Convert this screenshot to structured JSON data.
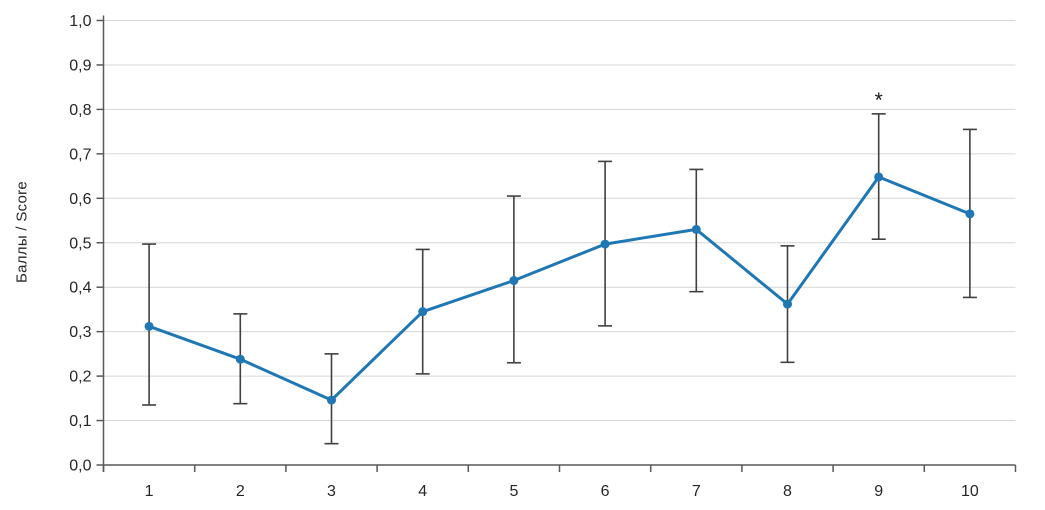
{
  "chart_data": {
    "type": "line",
    "title": "",
    "xlabel": "",
    "ylabel": "Баллы / Score",
    "categories": [
      "1",
      "2",
      "3",
      "4",
      "5",
      "6",
      "7",
      "8",
      "9",
      "10"
    ],
    "series": [
      {
        "name": "Баллы / Score",
        "values": [
          0.312,
          0.238,
          0.146,
          0.345,
          0.415,
          0.497,
          0.53,
          0.362,
          0.648,
          0.565
        ],
        "error_low": [
          0.135,
          0.138,
          0.048,
          0.205,
          0.23,
          0.313,
          0.39,
          0.231,
          0.508,
          0.377
        ],
        "error_high": [
          0.497,
          0.34,
          0.25,
          0.485,
          0.605,
          0.683,
          0.665,
          0.493,
          0.79,
          0.755
        ],
        "color": "#1f77b4"
      }
    ],
    "ylim": [
      0.0,
      1.0
    ],
    "ytick_labels": [
      "0,0",
      "0,1",
      "0,2",
      "0,3",
      "0,4",
      "0,5",
      "0,6",
      "0,7",
      "0,8",
      "0,9",
      "1,0"
    ],
    "grid": true,
    "legend_position": "none",
    "annotations": [
      {
        "x_index": 8,
        "text": "*"
      }
    ]
  },
  "style": {
    "line_color": "#1f77b4",
    "marker_color": "#1f77b4",
    "error_bar_color": "#404040",
    "grid_color": "#d6d6d6",
    "axis_color": "#595959",
    "tick_label_color": "#262626",
    "background": "#ffffff"
  }
}
